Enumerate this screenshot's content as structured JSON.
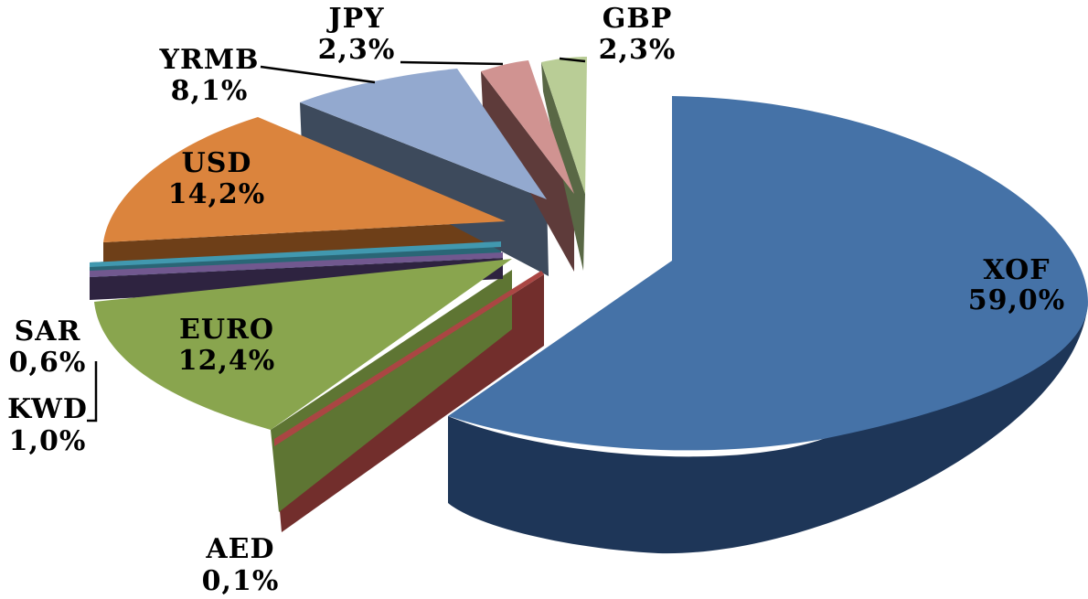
{
  "chart_data": {
    "type": "pie",
    "style": "3d-exploded",
    "title": "",
    "legend": "none",
    "slices": [
      {
        "label": "XOF",
        "value_label": "59,0%",
        "value": 59.0,
        "color": "#4572A7",
        "side_color": "#2B4A73"
      },
      {
        "label": "AED",
        "value_label": "0,1%",
        "value": 0.1,
        "color": "#AA4643",
        "side_color": "#722E2C"
      },
      {
        "label": "EURO",
        "value_label": "12,4%",
        "value": 12.4,
        "color": "#89A54E",
        "side_color": "#5E7533"
      },
      {
        "label": "KWD",
        "value_label": "1,0%",
        "value": 1.0,
        "color": "#71588F",
        "side_color": "#3A2D4D"
      },
      {
        "label": "SAR",
        "value_label": "0,6%",
        "value": 0.6,
        "color": "#4198AF",
        "side_color": "#2A6676"
      },
      {
        "label": "USD",
        "value_label": "14,2%",
        "value": 14.2,
        "color": "#DB843D",
        "side_color": "#6E3F18"
      },
      {
        "label": "YRMB",
        "value_label": "8,1%",
        "value": 8.1,
        "color": "#93A9CF",
        "side_color": "#3D4A5C"
      },
      {
        "label": "JPY",
        "value_label": "2,3%",
        "value": 2.3,
        "color": "#D09391",
        "side_color": "#5E3B3A"
      },
      {
        "label": "GBP",
        "value_label": "2,3%",
        "value": 2.3,
        "color": "#B9CD96",
        "side_color": "#596845"
      }
    ]
  }
}
